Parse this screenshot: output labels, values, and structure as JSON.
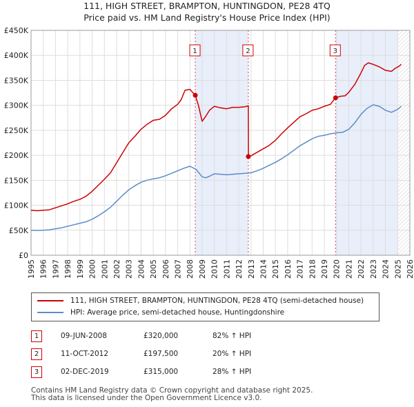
{
  "title_line1": "111, HIGH STREET, BRAMPTON, HUNTINGDON, PE28 4TQ",
  "title_line2": "Price paid vs. HM Land Registry's House Price Index (HPI)",
  "chart_data": {
    "type": "line",
    "ylim": [
      0,
      450000
    ],
    "xlim": [
      1995,
      2026
    ],
    "y_ticks": [
      0,
      50000,
      100000,
      150000,
      200000,
      250000,
      300000,
      350000,
      400000,
      450000
    ],
    "y_tick_labels": [
      "£0",
      "£50K",
      "£100K",
      "£150K",
      "£200K",
      "£250K",
      "£300K",
      "£350K",
      "£400K",
      "£450K"
    ],
    "x_tick_labels": [
      "1995",
      "1996",
      "1997",
      "1998",
      "1999",
      "2000",
      "2001",
      "2002",
      "2003",
      "2004",
      "2005",
      "2006",
      "2007",
      "2008",
      "2009",
      "2010",
      "2011",
      "2012",
      "2013",
      "2014",
      "2015",
      "2016",
      "2017",
      "2018",
      "2019",
      "2020",
      "2021",
      "2022",
      "2023",
      "2024",
      "2025",
      "2026"
    ],
    "colors": {
      "property": "#cc0000",
      "hpi": "#5b8cc8",
      "sale_band": "#e8eefa",
      "future_hatch": "#cccccc"
    },
    "series": [
      {
        "name": "111, HIGH STREET, BRAMPTON, HUNTINGDON, PE28 4TQ (semi-detached house)",
        "x": [
          1995.0,
          1995.5,
          1996.0,
          1996.5,
          1997.0,
          1997.5,
          1998.0,
          1998.5,
          1999.0,
          1999.5,
          2000.0,
          2000.5,
          2001.0,
          2001.5,
          2002.0,
          2002.5,
          2003.0,
          2003.5,
          2004.0,
          2004.5,
          2005.0,
          2005.5,
          2006.0,
          2006.5,
          2007.0,
          2007.3,
          2007.6,
          2008.0,
          2008.44,
          2008.7,
          2009.0,
          2009.3,
          2009.6,
          2010.0,
          2010.5,
          2011.0,
          2011.5,
          2012.0,
          2012.5,
          2012.78,
          2012.79,
          2013.0,
          2013.5,
          2014.0,
          2014.5,
          2015.0,
          2015.5,
          2016.0,
          2016.5,
          2017.0,
          2017.5,
          2018.0,
          2018.5,
          2019.0,
          2019.5,
          2019.92,
          2020.3,
          2020.7,
          2021.0,
          2021.5,
          2022.0,
          2022.3,
          2022.6,
          2023.0,
          2023.5,
          2024.0,
          2024.5,
          2024.8,
          2025.1,
          2025.3
        ],
        "values": [
          90000,
          89000,
          90000,
          91000,
          95000,
          99000,
          103000,
          108000,
          112000,
          118000,
          128000,
          140000,
          152000,
          165000,
          185000,
          205000,
          225000,
          238000,
          252000,
          262000,
          270000,
          272000,
          280000,
          293000,
          302000,
          312000,
          330000,
          332000,
          320000,
          300000,
          268000,
          278000,
          290000,
          298000,
          295000,
          293000,
          296000,
          296000,
          297000,
          299000,
          197500,
          199000,
          206000,
          213000,
          220000,
          230000,
          243000,
          255000,
          266000,
          277000,
          283000,
          290000,
          293000,
          298000,
          302000,
          315000,
          318000,
          319000,
          326000,
          342000,
          365000,
          380000,
          385000,
          382000,
          377000,
          370000,
          368000,
          374000,
          378000,
          382000
        ]
      },
      {
        "name": "HPI: Average price, semi-detached house, Huntingdonshire",
        "x": [
          1995.0,
          1995.5,
          1996.0,
          1996.5,
          1997.0,
          1997.5,
          1998.0,
          1998.5,
          1999.0,
          1999.5,
          2000.0,
          2000.5,
          2001.0,
          2001.5,
          2002.0,
          2002.5,
          2003.0,
          2003.5,
          2004.0,
          2004.5,
          2005.0,
          2005.5,
          2006.0,
          2006.5,
          2007.0,
          2007.5,
          2008.0,
          2008.5,
          2009.0,
          2009.3,
          2009.6,
          2010.0,
          2010.5,
          2011.0,
          2011.5,
          2012.0,
          2012.5,
          2013.0,
          2013.5,
          2014.0,
          2014.5,
          2015.0,
          2015.5,
          2016.0,
          2016.5,
          2017.0,
          2017.5,
          2018.0,
          2018.5,
          2019.0,
          2019.5,
          2020.0,
          2020.5,
          2021.0,
          2021.5,
          2022.0,
          2022.5,
          2023.0,
          2023.5,
          2024.0,
          2024.5,
          2025.0,
          2025.3
        ],
        "values": [
          50000,
          49500,
          50000,
          51000,
          53000,
          55000,
          58000,
          61000,
          64000,
          67000,
          72000,
          79000,
          87000,
          96000,
          108000,
          120000,
          131000,
          139000,
          146000,
          150000,
          153000,
          155000,
          159000,
          164000,
          169000,
          174000,
          178000,
          172000,
          157000,
          155000,
          158000,
          163000,
          162000,
          161000,
          162000,
          163000,
          164000,
          165000,
          169000,
          174000,
          180000,
          186000,
          193000,
          201000,
          210000,
          219000,
          226000,
          233000,
          238000,
          240000,
          243000,
          245000,
          246000,
          252000,
          265000,
          282000,
          294000,
          301000,
          298000,
          290000,
          286000,
          292000,
          298000
        ]
      }
    ],
    "sale_markers": [
      {
        "label": "1",
        "x": 2008.44,
        "y": 320000,
        "band_end": 2008.44
      },
      {
        "label": "2",
        "x": 2012.78,
        "y": 197500,
        "band_end": 2012.78
      },
      {
        "label": "3",
        "x": 2019.92,
        "y": 315000,
        "band_end": 2019.92
      }
    ],
    "band_starts": [
      2008.44,
      2012.78
    ]
  },
  "legend": {
    "property_label": "111, HIGH STREET, BRAMPTON, HUNTINGDON, PE28 4TQ (semi-detached house)",
    "hpi_label": "HPI: Average price, semi-detached house, Huntingdonshire"
  },
  "sales": [
    {
      "num": "1",
      "date": "09-JUN-2008",
      "price": "£320,000",
      "hpi": "82% ↑ HPI"
    },
    {
      "num": "2",
      "date": "11-OCT-2012",
      "price": "£197,500",
      "hpi": "20% ↑ HPI"
    },
    {
      "num": "3",
      "date": "02-DEC-2019",
      "price": "£315,000",
      "hpi": "28% ↑ HPI"
    }
  ],
  "footer_line1": "Contains HM Land Registry data © Crown copyright and database right 2025.",
  "footer_line2": "This data is licensed under the Open Government Licence v3.0."
}
